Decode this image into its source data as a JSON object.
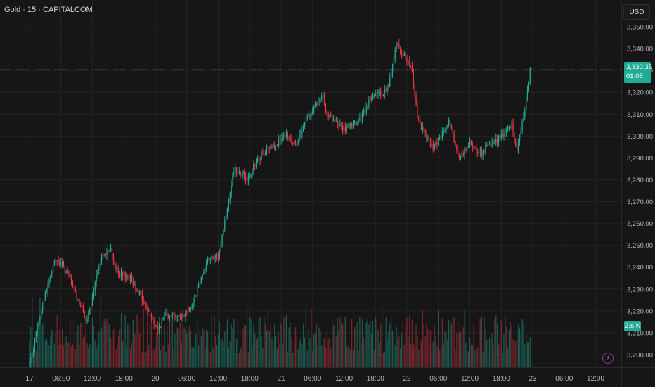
{
  "header": {
    "title": "Gold · 15 · CAPITALCOM"
  },
  "axis": {
    "currency": "USD"
  },
  "last_price": {
    "value": "3,330.35",
    "countdown": "01:08"
  },
  "volume_badge": "2.6 K",
  "icons": {
    "bolt": "lightning-icon"
  },
  "colors": {
    "up": "#22ab94",
    "down": "#f23645",
    "background": "#161616",
    "last_price_line": "#22ab94"
  },
  "chart_data": {
    "type": "candlestick",
    "symbol": "Gold",
    "interval": "15",
    "source": "CAPITALCOM",
    "y_axis": {
      "ylim": [
        3193,
        3357
      ],
      "ticks": [
        "3,200.00",
        "3,210.00",
        "3,220.00",
        "3,230.00",
        "3,240.00",
        "3,250.00",
        "3,260.00",
        "3,270.00",
        "3,280.00",
        "3,290.00",
        "3,300.00",
        "3,310.00",
        "3,320.00",
        "3,330.00",
        "3,340.00",
        "3,350.00"
      ]
    },
    "x_axis": {
      "ticks": [
        "17",
        "06:00",
        "12:00",
        "18:00",
        "20",
        "06:00",
        "12:00",
        "18:00",
        "21",
        "06:00",
        "12:00",
        "18:00",
        "22",
        "06:00",
        "12:00",
        "18:00",
        "23",
        "06:00",
        "12:00"
      ]
    },
    "grid": true,
    "last_close": 3330.35,
    "path_hours": [
      0,
      3,
      5,
      7,
      11,
      12,
      13.5,
      15.5,
      17,
      19,
      21,
      23,
      24.5,
      26,
      29,
      31,
      34,
      36,
      39,
      40.8,
      41.3,
      44,
      46,
      49,
      51,
      53,
      54,
      56,
      57,
      60,
      62,
      64,
      65,
      67,
      68.5,
      70,
      72.5,
      73,
      74,
      77,
      80,
      82,
      84,
      86,
      89,
      92,
      93,
      94.5,
      95.5
    ],
    "path_prices": [
      3196,
      3228,
      3244,
      3238,
      3215,
      3226,
      3244,
      3248,
      3236,
      3236,
      3228,
      3218,
      3211,
      3219,
      3217,
      3223,
      3244,
      3244,
      3285,
      3283,
      3280,
      3290,
      3295,
      3300,
      3296,
      3309,
      3312,
      3318,
      3309,
      3303,
      3305,
      3311,
      3318,
      3319,
      3322,
      3342,
      3333,
      3328,
      3308,
      3294,
      3306,
      3290,
      3296,
      3292,
      3298,
      3305,
      3293,
      3313,
      3330
    ],
    "volume": {
      "max_label_value": 2.6,
      "unit": "K"
    }
  }
}
